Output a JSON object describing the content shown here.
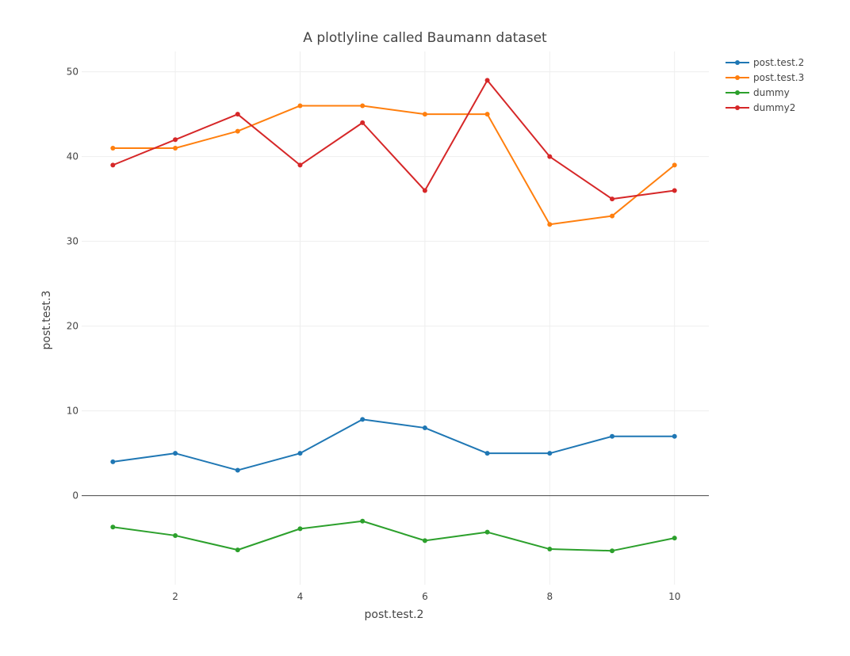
{
  "chart_data": {
    "type": "line",
    "title": "A plotlyline called Baumann dataset",
    "xlabel": "post.test.2",
    "ylabel": "post.test.3",
    "xlim": [
      0.5,
      10.55
    ],
    "ylim": [
      -10.5,
      52.4
    ],
    "xticks": [
      2,
      4,
      6,
      8,
      10
    ],
    "yticks": [
      0,
      10,
      20,
      30,
      40,
      50
    ],
    "grid": true,
    "legend_position": "top-right",
    "x": [
      1,
      2,
      3,
      4,
      5,
      6,
      7,
      8,
      9,
      10
    ],
    "series": [
      {
        "name": "post.test.2",
        "color": "#1f77b4",
        "values": [
          4,
          5,
          3,
          5,
          9,
          8,
          5,
          5,
          7,
          7
        ]
      },
      {
        "name": "post.test.3",
        "color": "#ff7f0e",
        "values": [
          41,
          41,
          43,
          46,
          46,
          45,
          45,
          32,
          33,
          39
        ]
      },
      {
        "name": "dummy",
        "color": "#2ca02c",
        "values": [
          -3.7,
          -4.7,
          -6.4,
          -3.9,
          -3.0,
          -5.3,
          -4.3,
          -6.3,
          -6.5,
          -5.0
        ]
      },
      {
        "name": "dummy2",
        "color": "#d62728",
        "values": [
          39,
          42,
          45,
          39,
          44,
          36,
          49,
          40,
          35,
          36
        ]
      }
    ]
  }
}
